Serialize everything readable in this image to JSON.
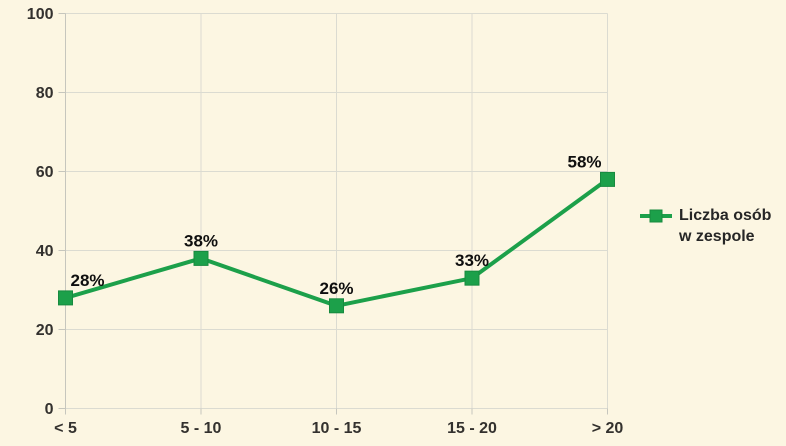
{
  "chart_data": {
    "type": "line",
    "categories": [
      "< 5",
      "5 - 10",
      "10 - 15",
      "15 - 20",
      "> 20"
    ],
    "series": [
      {
        "name": "Liczba osób w zespole",
        "values": [
          28,
          38,
          26,
          33,
          58
        ]
      }
    ],
    "data_labels": [
      "28%",
      "38%",
      "26%",
      "33%",
      "58%"
    ],
    "ylim": [
      0,
      100
    ],
    "yticks": [
      0,
      20,
      40,
      60,
      80,
      100
    ],
    "grid": true,
    "legend": {
      "position": "right",
      "lines": [
        "Liczba osób",
        "w zespole"
      ]
    },
    "colors": {
      "background": "#FCF6E2",
      "gridline": "#DBDBD1",
      "axis": "#C6C6BD",
      "series": "#1CA04A",
      "series_edge": "#178A3F",
      "data_label_text": "#0F0F0F",
      "tick_text": "#33312E",
      "legend_text": "#262626"
    }
  }
}
